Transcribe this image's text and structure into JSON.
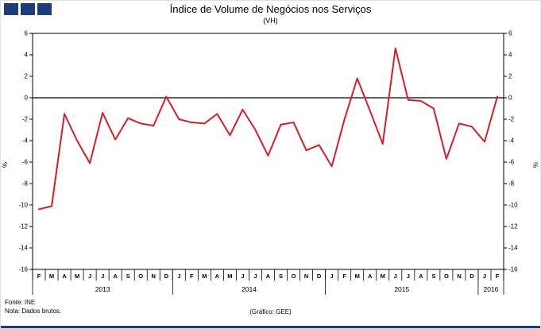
{
  "title": "Índice de Volume de Negócios nos Serviços",
  "subtitle": "(VH)",
  "footer": {
    "source": "Fonte: INE",
    "note": "Nota: Dados brutos.",
    "credit": "(Gráfico: GEE)"
  },
  "colors": {
    "line": "#d41f26",
    "navy": "#1f3c7a",
    "axis": "#000000"
  },
  "chart_data": {
    "type": "line",
    "title": "Índice de Volume de Negócios nos Serviços (VH)",
    "ylabel_left": "%",
    "ylabel_right": "%",
    "ylim": [
      -16,
      6
    ],
    "ytick_step": 2,
    "grid": false,
    "legend": "none",
    "line_color": "#d41f26",
    "x_labels": [
      "F",
      "M",
      "A",
      "M",
      "J",
      "J",
      "A",
      "S",
      "O",
      "N",
      "D",
      "J",
      "F",
      "M",
      "A",
      "M",
      "J",
      "J",
      "A",
      "S",
      "O",
      "N",
      "D",
      "J",
      "F",
      "M",
      "A",
      "M",
      "J",
      "J",
      "A",
      "S",
      "O",
      "N",
      "D",
      "J",
      "F"
    ],
    "values": [
      -10.4,
      -10.1,
      -1.5,
      -4.0,
      -6.1,
      -1.4,
      -3.9,
      -1.9,
      -2.4,
      -2.6,
      0.1,
      -2.0,
      -2.3,
      -2.4,
      -1.5,
      -3.5,
      -1.1,
      -3.0,
      -5.4,
      -2.5,
      -2.3,
      -4.9,
      -4.4,
      -6.4,
      -2.0,
      1.8,
      -1.2,
      -4.3,
      4.6,
      -0.2,
      -0.3,
      -1.0,
      -5.7,
      -2.4,
      -2.7,
      -4.1,
      0.1
    ],
    "year_spans": [
      {
        "label": "2013",
        "start": 0,
        "end": 10
      },
      {
        "label": "2014",
        "start": 11,
        "end": 22
      },
      {
        "label": "2015",
        "start": 23,
        "end": 34
      },
      {
        "label": "2016",
        "start": 35,
        "end": 36
      }
    ]
  }
}
